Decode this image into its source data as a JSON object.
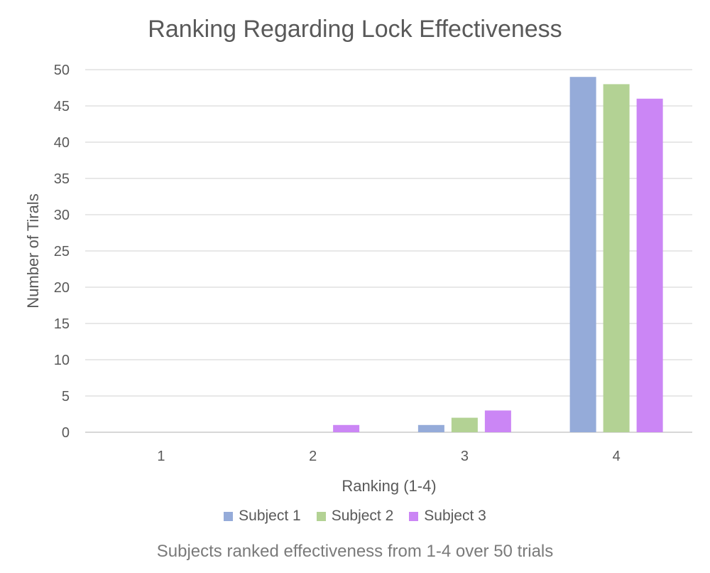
{
  "chart_data": {
    "type": "bar",
    "title": "Ranking Regarding Lock Effectiveness",
    "xlabel": "Ranking (1-4)",
    "ylabel": "Number of Tirals",
    "categories": [
      "1",
      "2",
      "3",
      "4"
    ],
    "ylim": [
      0,
      50
    ],
    "yticks": [
      0,
      5,
      10,
      15,
      20,
      25,
      30,
      35,
      40,
      45,
      50
    ],
    "grid": true,
    "legend_position": "bottom",
    "series": [
      {
        "name": "Subject 1",
        "color": "#95abd9",
        "values": [
          0,
          0,
          1,
          49
        ]
      },
      {
        "name": "Subject 2",
        "color": "#b3d294",
        "values": [
          0,
          0,
          2,
          48
        ]
      },
      {
        "name": "Subject 3",
        "color": "#cb86f5",
        "values": [
          0,
          1,
          3,
          46
        ]
      }
    ],
    "caption": "Subjects ranked effectiveness from 1-4 over 50 trials"
  }
}
